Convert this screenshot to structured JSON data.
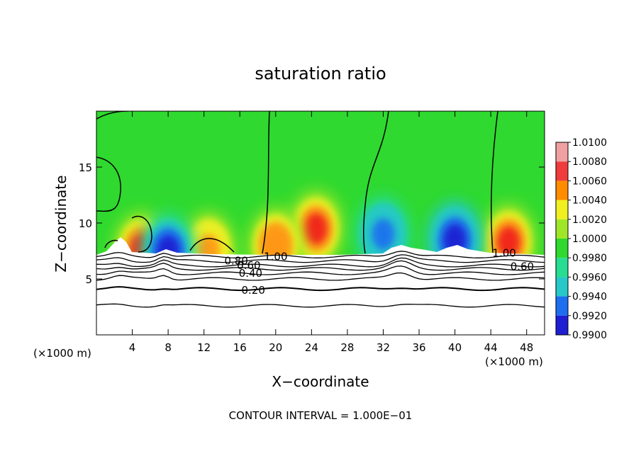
{
  "chart_data": {
    "type": "heatmap",
    "title": "saturation ratio",
    "xlabel": "X−coordinate",
    "ylabel": "Z−coordinate",
    "x_unit_left": "(×1000 m)",
    "x_unit_right": "(×1000 m)",
    "xlim": [
      0,
      50
    ],
    "ylim": [
      0,
      20
    ],
    "x_ticks": [
      4,
      8,
      12,
      16,
      20,
      24,
      28,
      32,
      36,
      40,
      44,
      48
    ],
    "y_ticks": [
      5,
      10,
      15
    ],
    "colorbar_ticks": [
      "1.0100",
      "1.0080",
      "1.0060",
      "1.0040",
      "1.0020",
      "1.0000",
      "0.9980",
      "0.9960",
      "0.9940",
      "0.9920",
      "0.9900"
    ],
    "colorbar_range": [
      0.99,
      1.01
    ],
    "contour_labels": [
      {
        "text": "1.00",
        "x": 20.0,
        "z": 7.0
      },
      {
        "text": "0.80",
        "x": 15.6,
        "z": 6.6
      },
      {
        "text": "0.60",
        "x": 17.0,
        "z": 6.2
      },
      {
        "text": "0.40",
        "x": 17.2,
        "z": 5.5
      },
      {
        "text": "0.20",
        "x": 17.5,
        "z": 4.0
      },
      {
        "text": "1.00",
        "x": 45.5,
        "z": 7.3
      },
      {
        "text": "0.60",
        "x": 47.5,
        "z": 6.1
      }
    ],
    "features": [
      {
        "kind": "positive",
        "x": 24.5,
        "z": 9.5,
        "peak": 1.0065
      },
      {
        "kind": "positive",
        "x": 20.0,
        "z": 8.0,
        "peak": 1.006
      },
      {
        "kind": "positive",
        "x": 46.0,
        "z": 8.3,
        "peak": 1.0065
      },
      {
        "kind": "positive",
        "x": 5.0,
        "z": 7.6,
        "peak": 1.0065
      },
      {
        "kind": "positive",
        "x": 12.5,
        "z": 7.6,
        "peak": 1.005
      },
      {
        "kind": "negative",
        "x": 40.0,
        "z": 8.5,
        "peak": 0.992
      },
      {
        "kind": "negative",
        "x": 32.0,
        "z": 9.0,
        "peak": 0.9945
      },
      {
        "kind": "negative",
        "x": 8.0,
        "z": 7.5,
        "peak": 0.9935
      }
    ],
    "footer": "CONTOUR INTERVAL = 1.000E−01"
  }
}
